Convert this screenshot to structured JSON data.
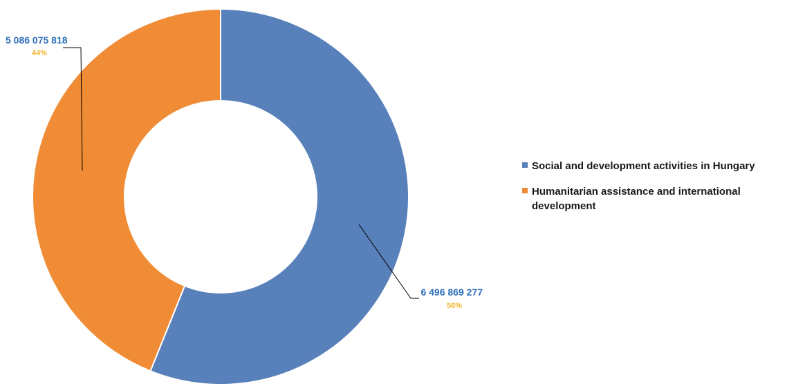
{
  "chart_data": {
    "type": "pie",
    "donut": true,
    "title": "",
    "legend_position": "right",
    "slices": [
      {
        "name": "Social and development activities in Hungary",
        "value": 6496869277,
        "value_label": "6 496 869 277",
        "percent_label": "56%",
        "color": "#5880ba"
      },
      {
        "name": "Humanitarian assistance and international development",
        "value": 5086075818,
        "value_label": "5 086 075 818",
        "percent_label": "44%",
        "color": "#ef8c35"
      }
    ],
    "value_label_color": "#2e6fba",
    "percent_label_color": "#f2b631"
  }
}
